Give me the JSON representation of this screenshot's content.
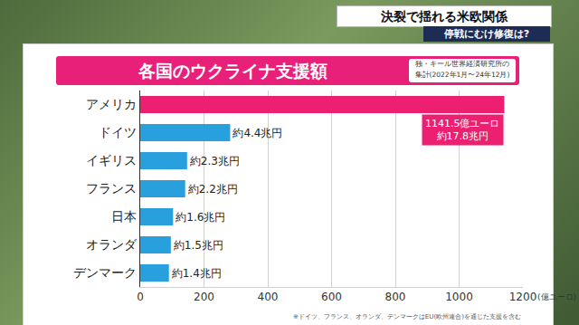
{
  "header": {
    "headline": "決裂で揺れる米欧関係",
    "subheadline": "停戦にむけ修復は?"
  },
  "chart_data": {
    "type": "bar",
    "orientation": "horizontal",
    "title": "各国のウクライナ支援額",
    "subtitle": "独・キール世界経済研究所の\n集計(2022年1月〜24年12月)",
    "xlabel": "(億ユーロ)",
    "note": "※ドイツ、フランス、オランダ、デンマークはEU(欧州連合)を通じた支援を含む",
    "categories": [
      "アメリカ",
      "ドイツ",
      "イギリス",
      "フランス",
      "日本",
      "オランダ",
      "デンマーク"
    ],
    "values": [
      1141.5,
      282,
      147,
      141,
      103,
      96,
      90
    ],
    "value_labels": [
      "1141.5億ユーロ\n約17.8兆円",
      "約4.4兆円",
      "約2.3兆円",
      "約2.2兆円",
      "約1.6兆円",
      "約1.5兆円",
      "約1.4兆円"
    ],
    "colors": [
      "#ec1f71",
      "#29a0de",
      "#29a0de",
      "#29a0de",
      "#29a0de",
      "#29a0de",
      "#29a0de"
    ],
    "data_labels": true,
    "xlim": [
      0,
      1200
    ],
    "xticks": [
      0,
      200,
      400,
      600,
      800,
      1000,
      1200
    ],
    "grid": true
  }
}
